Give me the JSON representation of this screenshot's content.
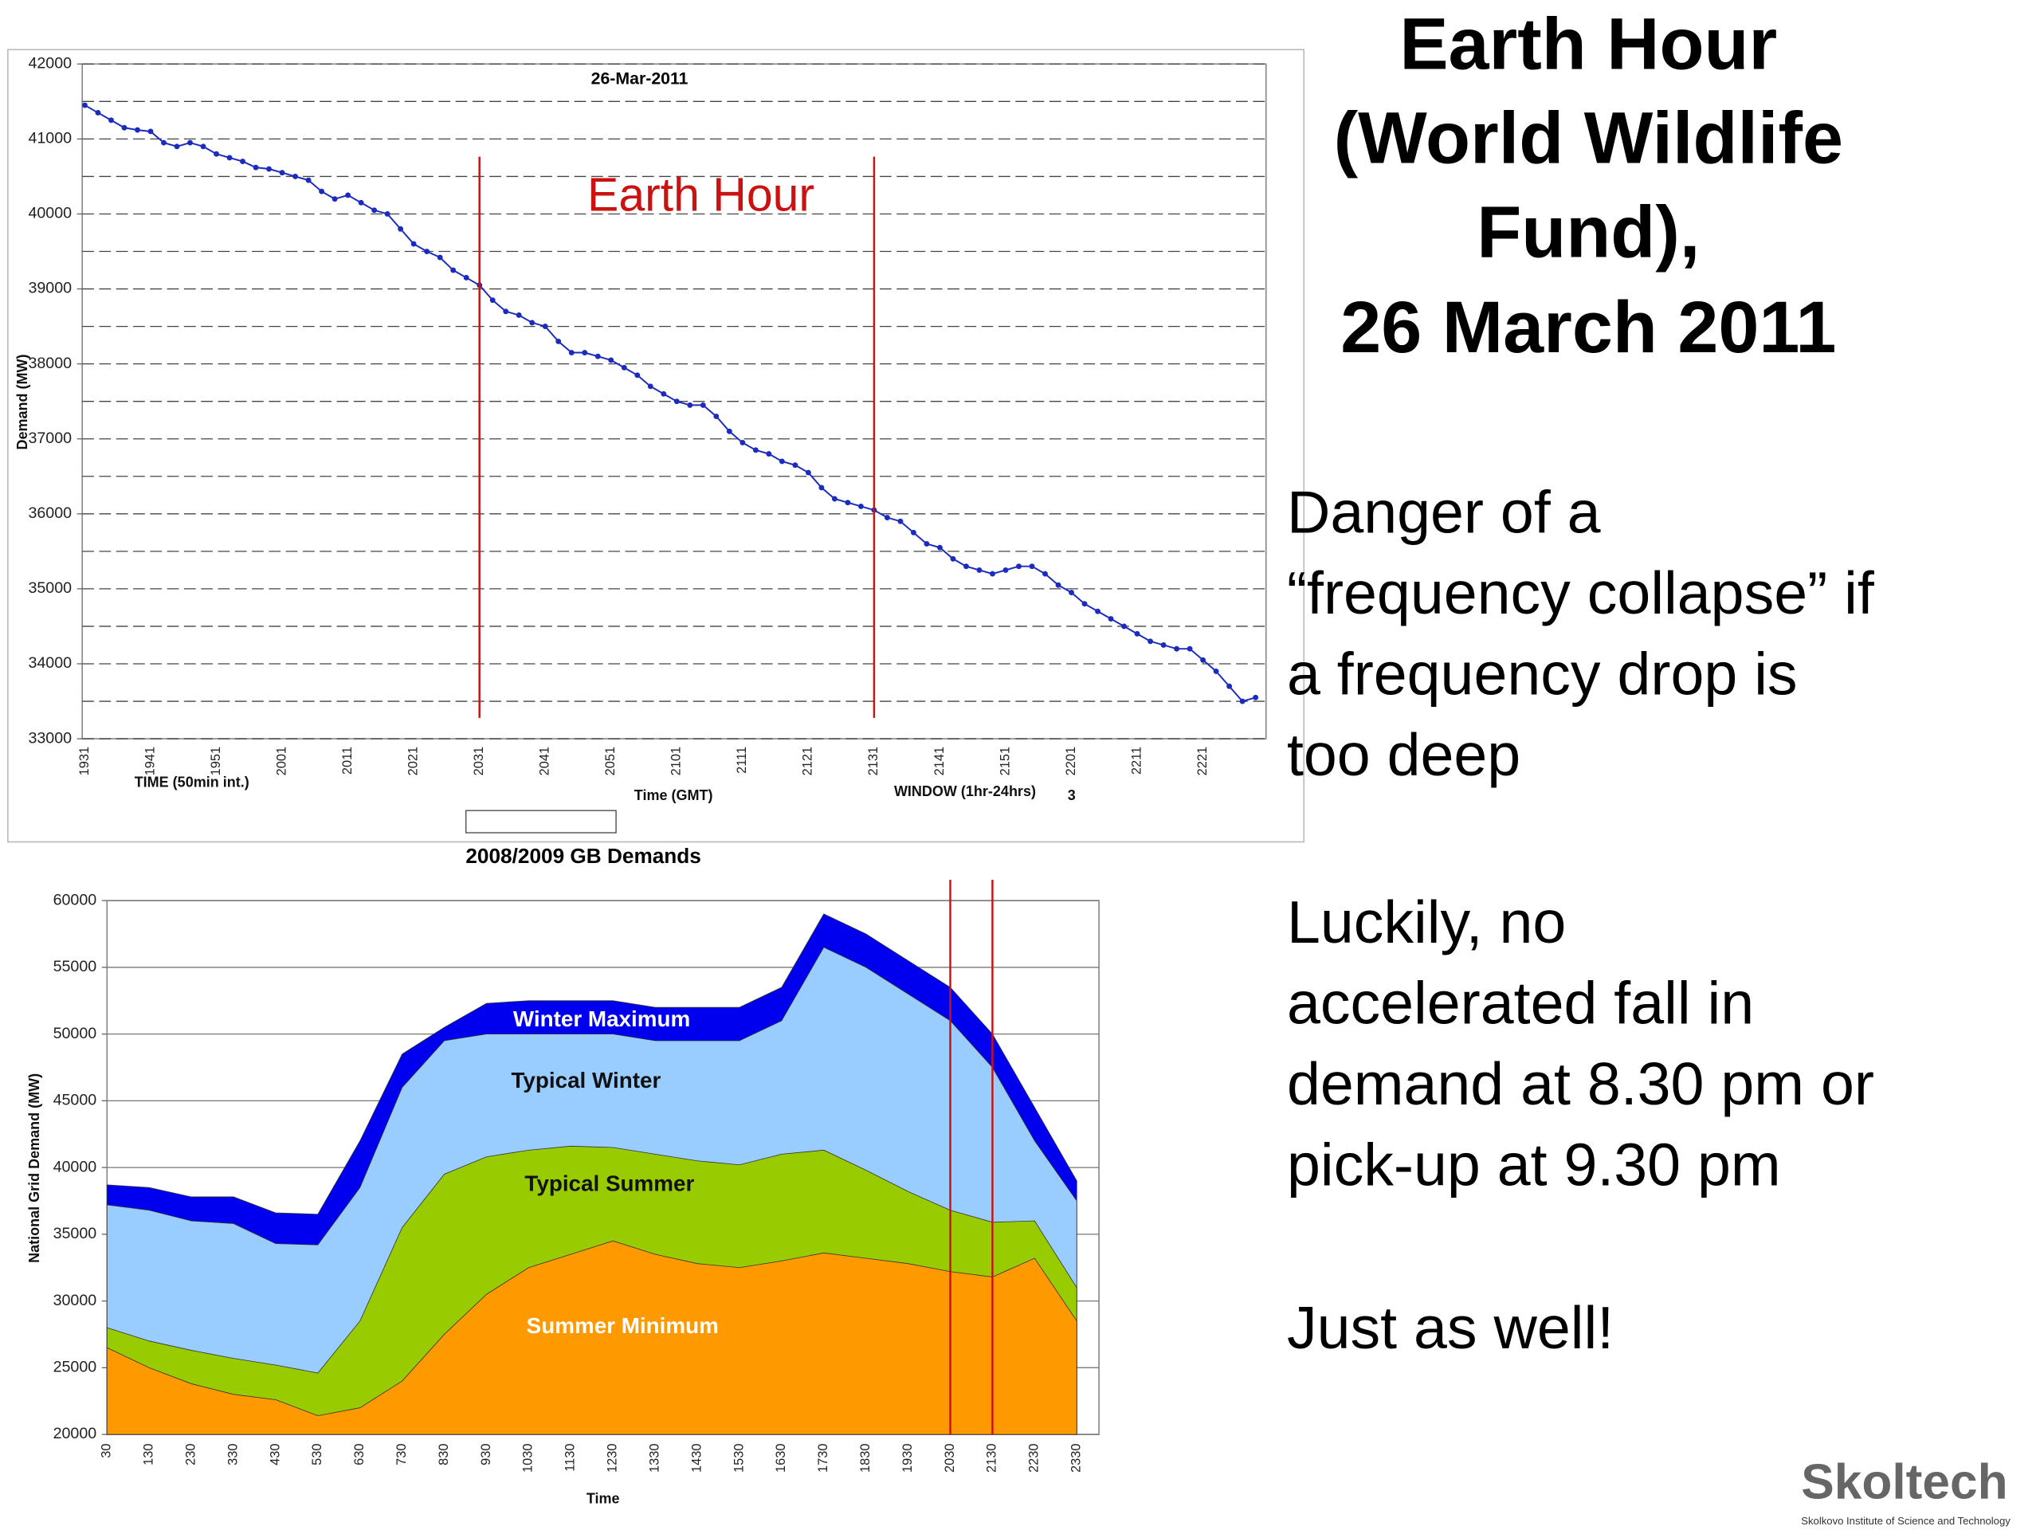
{
  "slide": {
    "title": [
      "Earth Hour",
      "(World Wildlife",
      "Fund),",
      "26 March 2011"
    ],
    "body": [
      [
        "Danger of a",
        "“frequency collapse” if",
        "a frequency drop is",
        "too deep"
      ],
      [
        "Luckily, no",
        "accelerated fall in",
        "demand at 8.30 pm or",
        "pick-up at 9.30 pm"
      ],
      [
        "Just as well!"
      ]
    ],
    "logo": "Skoltech",
    "logo_caption": "Skolkovo Institute of Science and Technology"
  },
  "chart_data": [
    {
      "type": "line",
      "title": "26-Mar-2011",
      "annotation": "Earth Hour",
      "y_label": "Demand (MW)",
      "x_label": "Time (GMT)",
      "notes": [
        "TIME (50min int.)",
        "WINDOW (1hr-24hrs)",
        "3"
      ],
      "categories": [
        "1931",
        null,
        null,
        null,
        null,
        "1941",
        null,
        null,
        null,
        null,
        "1951",
        null,
        null,
        null,
        null,
        "2001",
        null,
        null,
        null,
        null,
        "2011",
        null,
        null,
        null,
        null,
        "2021",
        null,
        null,
        null,
        null,
        "2031",
        null,
        null,
        null,
        null,
        "2041",
        null,
        null,
        null,
        null,
        "2051",
        null,
        null,
        null,
        null,
        "2101",
        null,
        null,
        null,
        null,
        "2111",
        null,
        null,
        null,
        null,
        "2121",
        null,
        null,
        null,
        null,
        "2131",
        null,
        null,
        null,
        null,
        "2141",
        null,
        null,
        null,
        null,
        "2151",
        null,
        null,
        null,
        null,
        "2201",
        null,
        null,
        null,
        null,
        "2211",
        null,
        null,
        null,
        null,
        "2221",
        null,
        null,
        null,
        null
      ],
      "values": [
        41450,
        41350,
        41250,
        41150,
        41120,
        41100,
        40950,
        40900,
        40950,
        40900,
        40800,
        40750,
        40700,
        40620,
        40600,
        40550,
        40500,
        40450,
        40300,
        40200,
        40250,
        40150,
        40050,
        40000,
        39800,
        39600,
        39500,
        39420,
        39250,
        39150,
        39050,
        38850,
        38700,
        38650,
        38550,
        38500,
        38300,
        38150,
        38150,
        38100,
        38050,
        37950,
        37850,
        37700,
        37600,
        37500,
        37450,
        37450,
        37300,
        37100,
        36950,
        36850,
        36800,
        36700,
        36650,
        36550,
        36350,
        36200,
        36150,
        36100,
        36050,
        35950,
        35900,
        35750,
        35600,
        35550,
        35400,
        35300,
        35250,
        35200,
        35250,
        35300,
        35300,
        35200,
        35050,
        34950,
        34800,
        34700,
        34600,
        34500,
        34400,
        34300,
        34250,
        34200,
        34200,
        34050,
        33900,
        33700,
        33500,
        33550
      ],
      "color": "#1a2bbd",
      "markers": true,
      "ylim": [
        33000,
        42000
      ],
      "yticks": [
        33000,
        34000,
        35000,
        36000,
        37000,
        38000,
        39000,
        40000,
        41000,
        42000
      ],
      "minor_yticks": [
        33500,
        34500,
        35500,
        36500,
        37500,
        38500,
        39500,
        40500,
        41500
      ],
      "grid": true,
      "vlines": [
        "2031",
        "2131"
      ],
      "vline_color": "#cc1111"
    },
    {
      "type": "area",
      "title": "2008/2009 GB Demands",
      "x_label": "Time",
      "y_label": "National Grid Demand (MW)",
      "categories": [
        "30",
        "130",
        "230",
        "330",
        "430",
        "530",
        "630",
        "730",
        "830",
        "930",
        "1030",
        "1130",
        "1230",
        "1330",
        "1430",
        "1530",
        "1630",
        "1730",
        "1830",
        "1930",
        "2030",
        "2130",
        "2230",
        "2330"
      ],
      "series": [
        {
          "name": "Winter Maximum",
          "color": "#0000ee",
          "label_color": "#ffffff",
          "values": [
            38700,
            38500,
            37800,
            37800,
            36600,
            36500,
            42000,
            48500,
            50500,
            52300,
            52500,
            52500,
            52500,
            52000,
            52000,
            52000,
            53500,
            59000,
            57500,
            55500,
            53500,
            50000,
            44500,
            39000
          ]
        },
        {
          "name": "Typical Winter",
          "color": "#99ccff",
          "label_color": "#111111",
          "values": [
            37200,
            36800,
            36000,
            35800,
            34300,
            34200,
            38500,
            46000,
            49500,
            50000,
            50000,
            50000,
            50000,
            49500,
            49500,
            49500,
            51000,
            56500,
            55000,
            53000,
            51000,
            47500,
            42000,
            37500
          ]
        },
        {
          "name": "Typical Summer",
          "color": "#99cc00",
          "label_color": "#111111",
          "values": [
            28000,
            27000,
            26300,
            25700,
            25200,
            24600,
            28500,
            35500,
            39500,
            40800,
            41300,
            41600,
            41500,
            41000,
            40500,
            40200,
            41000,
            41300,
            39800,
            38200,
            36800,
            35900,
            36000,
            31000
          ]
        },
        {
          "name": "Summer Minimum",
          "color": "#ff9900",
          "label_color": "#ffffff",
          "values": [
            26500,
            25000,
            23800,
            23000,
            22600,
            21400,
            22000,
            24000,
            27500,
            30500,
            32500,
            33500,
            34500,
            33500,
            32800,
            32500,
            33000,
            33600,
            33200,
            32800,
            32200,
            31800,
            33200,
            28500
          ]
        }
      ],
      "ylim": [
        20000,
        60000
      ],
      "yticks": [
        20000,
        25000,
        30000,
        35000,
        40000,
        45000,
        50000,
        55000,
        60000
      ],
      "grid": true,
      "vlines": [
        "2030",
        "2130"
      ],
      "vline_color": "#cc1111"
    }
  ]
}
